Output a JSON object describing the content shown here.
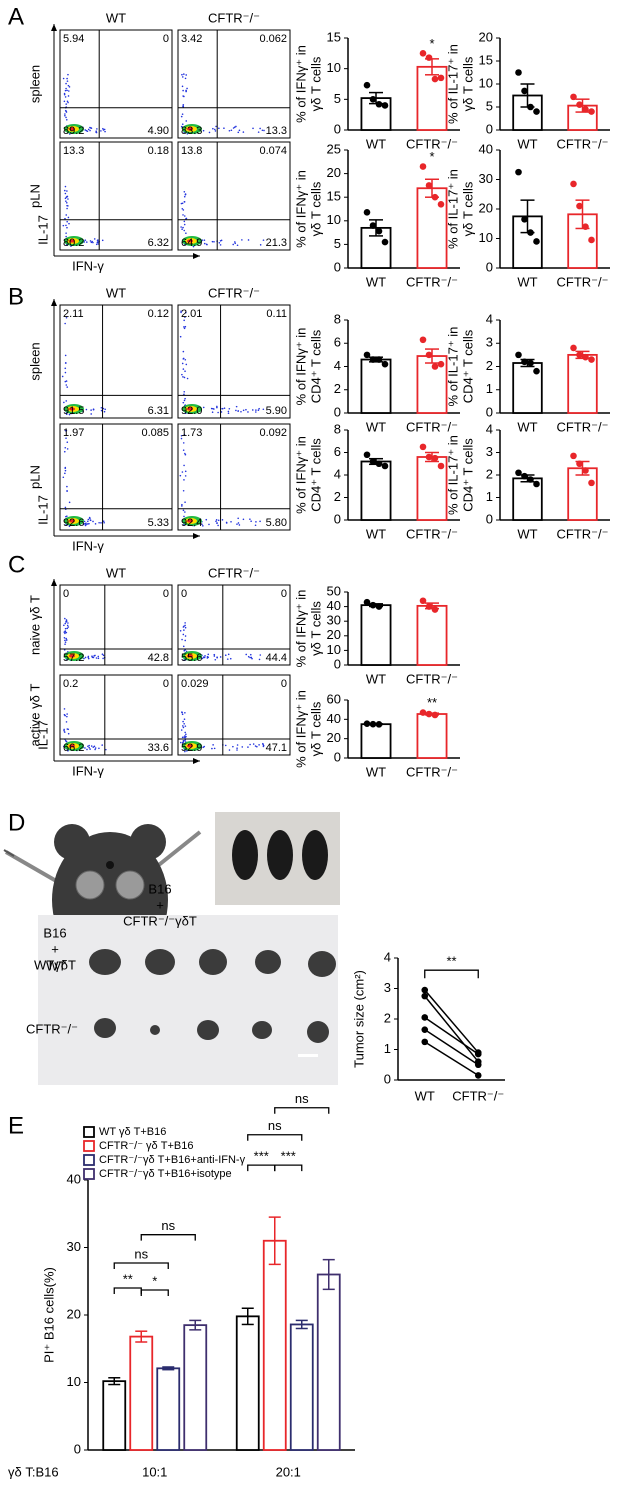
{
  "panel_labels": [
    "A",
    "B",
    "C",
    "D",
    "E"
  ],
  "flow": [
    {
      "columns": [
        "WT",
        "CFTR⁻/⁻"
      ],
      "rows": [
        "spleen",
        "pLN"
      ],
      "y_axis": "IL-17",
      "x_axis": "IFN-γ",
      "quadrants": [
        [
          [
            "5.94",
            "0",
            "89.2",
            "4.90"
          ],
          [
            "3.42",
            "0.062",
            "83.3",
            "13.3"
          ]
        ],
        [
          [
            "13.3",
            "0.18",
            "80.2",
            "6.32"
          ],
          [
            "13.8",
            "0.074",
            "64.9",
            "21.3"
          ]
        ]
      ]
    },
    {
      "columns": [
        "WT",
        "CFTR⁻/⁻"
      ],
      "rows": [
        "spleen",
        "pLN"
      ],
      "y_axis": "IL-17",
      "x_axis": "IFN-γ",
      "quadrants": [
        [
          [
            "2.11",
            "0.12",
            "91.5",
            "6.31"
          ],
          [
            "2.01",
            "0.11",
            "92.0",
            "5.90"
          ]
        ],
        [
          [
            "1.97",
            "0.085",
            "92.6",
            "5.33"
          ],
          [
            "1.73",
            "0.092",
            "92.4",
            "5.80"
          ]
        ]
      ]
    },
    {
      "columns": [
        "WT",
        "CFTR⁻/⁻"
      ],
      "rows": [
        "naive γδ T",
        "active γδ T"
      ],
      "y_axis": "IL-17",
      "x_axis": "IFN-γ",
      "quadrants": [
        [
          [
            "0",
            "0",
            "57.2",
            "42.8"
          ],
          [
            "0",
            "0",
            "55.6",
            "44.4"
          ]
        ],
        [
          [
            "0.2",
            "0",
            "66.2",
            "33.6"
          ],
          [
            "0.029",
            "0",
            "52.9",
            "47.1"
          ]
        ]
      ]
    }
  ],
  "diagram": {
    "left": [
      "B16",
      "+",
      "WTγδT"
    ],
    "right": [
      "B16",
      "+",
      "CFTR⁻/⁻γδT"
    ],
    "photo_rows": [
      "WT",
      "CFTR⁻/⁻"
    ]
  },
  "chart_data": [
    {
      "type": "bar",
      "ylabel": [
        "% of IFNγ⁺ in",
        "γδ T cells"
      ],
      "categories": [
        "WT",
        "CFTR⁻/⁻"
      ],
      "values": [
        5.2,
        10.3
      ],
      "errors": [
        0.9,
        1.3
      ],
      "points": [
        [
          7.3,
          5.0,
          4.2,
          4.0
        ],
        [
          12.5,
          11.8,
          8.3,
          8.5
        ]
      ],
      "colors": [
        "#000000",
        "#e8262a"
      ],
      "ylim": [
        0,
        15
      ],
      "yticks": [
        0,
        5,
        10,
        15
      ],
      "annotations": [
        "*"
      ]
    },
    {
      "type": "bar",
      "ylabel": [
        "% of IL-17⁺ in",
        "γδ T cells"
      ],
      "categories": [
        "WT",
        "CFTR⁻/⁻"
      ],
      "values": [
        7.5,
        5.3
      ],
      "errors": [
        2.5,
        1.4
      ],
      "points": [
        [
          12.5,
          8.5,
          5.0,
          4.0
        ],
        [
          7.2,
          5.5,
          4.5,
          4.0
        ]
      ],
      "colors": [
        "#000000",
        "#e8262a"
      ],
      "ylim": [
        0,
        20
      ],
      "yticks": [
        0,
        5,
        10,
        15,
        20
      ]
    },
    {
      "type": "bar",
      "ylabel": [
        "% of IFNγ⁺ in",
        "γδ T cells"
      ],
      "categories": [
        "WT",
        "CFTR⁻/⁻"
      ],
      "values": [
        8.5,
        16.9
      ],
      "errors": [
        1.7,
        1.9
      ],
      "points": [
        [
          11.8,
          9.0,
          7.8,
          5.5
        ],
        [
          21.5,
          17.5,
          15.0,
          13.5
        ]
      ],
      "colors": [
        "#000000",
        "#e8262a"
      ],
      "ylim": [
        0,
        25
      ],
      "yticks": [
        0,
        5,
        10,
        15,
        20,
        25
      ],
      "annotations": [
        "*"
      ]
    },
    {
      "type": "bar",
      "ylabel": [
        "% of IL-17⁺ in",
        "γδ T cells"
      ],
      "categories": [
        "WT",
        "CFTR⁻/⁻"
      ],
      "values": [
        17.5,
        18.2
      ],
      "errors": [
        5.5,
        4.8
      ],
      "points": [
        [
          32.5,
          16.5,
          12.0,
          9.0
        ],
        [
          28.5,
          21.0,
          14.0,
          9.5
        ]
      ],
      "colors": [
        "#000000",
        "#e8262a"
      ],
      "ylim": [
        0,
        40
      ],
      "yticks": [
        0,
        10,
        20,
        30,
        40
      ]
    },
    {
      "type": "bar",
      "ylabel": [
        "% of IFNγ⁺ in",
        "CD4⁺ T cells"
      ],
      "categories": [
        "WT",
        "CFTR⁻/⁻"
      ],
      "values": [
        4.6,
        4.9
      ],
      "errors": [
        0.2,
        0.6
      ],
      "points": [
        [
          5.0,
          4.6,
          4.6,
          4.2
        ],
        [
          6.3,
          5.0,
          4.0,
          4.2
        ]
      ],
      "colors": [
        "#000000",
        "#e8262a"
      ],
      "ylim": [
        0,
        8
      ],
      "yticks": [
        0,
        2,
        4,
        6,
        8
      ]
    },
    {
      "type": "bar",
      "ylabel": [
        "% of IL-17⁺ in",
        "CD4⁺ T cells"
      ],
      "categories": [
        "WT",
        "CFTR⁻/⁻"
      ],
      "values": [
        2.15,
        2.5
      ],
      "errors": [
        0.15,
        0.15
      ],
      "points": [
        [
          2.5,
          2.2,
          2.15,
          1.8
        ],
        [
          2.8,
          2.5,
          2.4,
          2.3
        ]
      ],
      "colors": [
        "#000000",
        "#e8262a"
      ],
      "ylim": [
        0,
        4
      ],
      "yticks": [
        0,
        1,
        2,
        3,
        4
      ]
    },
    {
      "type": "bar",
      "ylabel": [
        "% of IFNγ⁺ in",
        "CD4⁺ T cells"
      ],
      "categories": [
        "WT",
        "CFTR⁻/⁻"
      ],
      "values": [
        5.2,
        5.6
      ],
      "errors": [
        0.25,
        0.4
      ],
      "points": [
        [
          5.8,
          5.2,
          5.0,
          4.8
        ],
        [
          6.5,
          5.6,
          5.5,
          4.8
        ]
      ],
      "colors": [
        "#000000",
        "#e8262a"
      ],
      "ylim": [
        0,
        8
      ],
      "yticks": [
        0,
        2,
        4,
        6,
        8
      ]
    },
    {
      "type": "bar",
      "ylabel": [
        "% of IL-17⁺ in",
        "CD4⁺ T cells"
      ],
      "categories": [
        "WT",
        "CFTR⁻/⁻"
      ],
      "values": [
        1.85,
        2.3
      ],
      "errors": [
        0.15,
        0.3
      ],
      "points": [
        [
          2.1,
          1.95,
          1.8,
          1.6
        ],
        [
          2.85,
          2.5,
          2.2,
          1.65
        ]
      ],
      "colors": [
        "#000000",
        "#e8262a"
      ],
      "ylim": [
        0,
        4
      ],
      "yticks": [
        0,
        1,
        2,
        3,
        4
      ]
    },
    {
      "type": "bar",
      "ylabel": [
        "% of IFNγ⁺ in",
        "γδ T cells"
      ],
      "categories": [
        "WT",
        "CFTR⁻/⁻"
      ],
      "values": [
        41,
        40.5
      ],
      "errors": [
        0.9,
        1.9
      ],
      "points": [
        [
          43,
          41,
          40
        ],
        [
          44,
          40,
          38
        ]
      ],
      "colors": [
        "#000000",
        "#e8262a"
      ],
      "ylim": [
        0,
        50
      ],
      "yticks": [
        0,
        10,
        20,
        30,
        40,
        50
      ]
    },
    {
      "type": "bar",
      "ylabel": [
        "% of IFNγ⁺ in",
        "γδ T cells"
      ],
      "categories": [
        "WT",
        "CFTR⁻/⁻"
      ],
      "values": [
        35,
        45.5
      ],
      "errors": [
        0.3,
        0.9
      ],
      "points": [
        [
          35.5,
          35,
          34.8
        ],
        [
          47,
          45.5,
          44.5
        ]
      ],
      "colors": [
        "#000000",
        "#e8262a"
      ],
      "ylim": [
        0,
        60
      ],
      "yticks": [
        0,
        20,
        40,
        60
      ],
      "annotations": [
        "**"
      ]
    },
    {
      "type": "line",
      "ylabel": "Tumor size (cm²)",
      "categories": [
        "WT",
        "CFTR⁻/⁻"
      ],
      "color": "#000000",
      "series": [
        {
          "values": [
            2.95,
            0.9
          ]
        },
        {
          "values": [
            2.75,
            0.6
          ]
        },
        {
          "values": [
            2.05,
            0.85
          ]
        },
        {
          "values": [
            1.65,
            0.5
          ]
        },
        {
          "values": [
            1.25,
            0.15
          ]
        }
      ],
      "ylim": [
        0,
        4
      ],
      "yticks": [
        0,
        1,
        2,
        3,
        4
      ],
      "annotations": [
        "**"
      ]
    },
    {
      "type": "bar",
      "ylabel": "PI⁺ B16 cells(%)",
      "xlabel": "γδ T:B16",
      "categories": [
        "10:1",
        "20:1"
      ],
      "series": [
        {
          "name": "WT γδ T+B16",
          "color": "#000000",
          "values": [
            10.2,
            19.8
          ],
          "errors": [
            0.5,
            1.2
          ]
        },
        {
          "name": "CFTR⁻/⁻ γδ T+B16",
          "color": "#e8262a",
          "values": [
            16.8,
            31
          ],
          "errors": [
            0.8,
            3.5
          ]
        },
        {
          "name": "CFTR⁻/⁻γδ T+B16+anti-IFN-γ",
          "color": "#2b2c6e",
          "values": [
            12.1,
            18.6
          ],
          "errors": [
            0.2,
            0.6
          ]
        },
        {
          "name": "CFTR⁻/⁻γδ T+B16+isotype",
          "color": "#3f2f6e",
          "values": [
            18.5,
            26
          ],
          "errors": [
            0.7,
            2.2
          ]
        }
      ],
      "ylim": [
        0,
        40
      ],
      "yticks": [
        0,
        10,
        20,
        30,
        40
      ],
      "annotations": [
        "**",
        "*",
        "ns",
        "ns",
        "***",
        "***",
        "ns",
        "ns"
      ]
    }
  ]
}
